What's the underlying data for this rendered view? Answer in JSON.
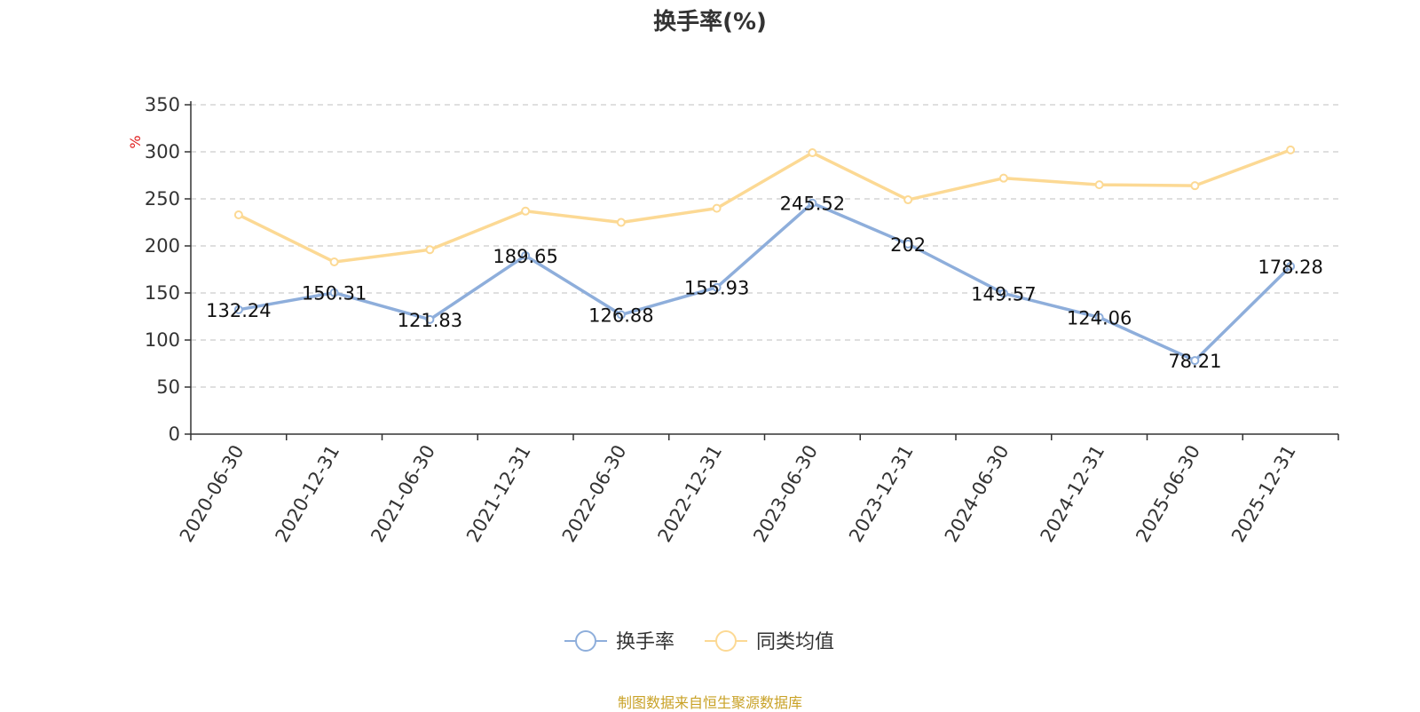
{
  "title": "换手率(%)",
  "source": "制图数据来自恒生聚源数据库",
  "chart_data": {
    "type": "line",
    "title": "换手率(%)",
    "ylabel": "%",
    "ylim": [
      0,
      350
    ],
    "yticks": [
      0,
      50,
      100,
      150,
      200,
      250,
      300,
      350
    ],
    "grid": true,
    "legend_position": "bottom-center",
    "categories": [
      "2020-06-30",
      "2020-12-31",
      "2021-06-30",
      "2021-12-31",
      "2022-06-30",
      "2022-12-31",
      "2023-06-30",
      "2023-12-31",
      "2024-06-30",
      "2024-12-31",
      "2025-06-30",
      "2025-12-31"
    ],
    "series": [
      {
        "name": "换手率",
        "color": "#8eaedb",
        "show_labels": true,
        "values": [
          132.24,
          150.31,
          121.83,
          189.65,
          126.88,
          155.93,
          245.52,
          202,
          149.57,
          124.06,
          78.21,
          178.28
        ]
      },
      {
        "name": "同类均值",
        "color": "#fcd994",
        "show_labels": false,
        "values": [
          233,
          183,
          196,
          237,
          225,
          240,
          299,
          249,
          272,
          265,
          264,
          302
        ]
      }
    ]
  }
}
